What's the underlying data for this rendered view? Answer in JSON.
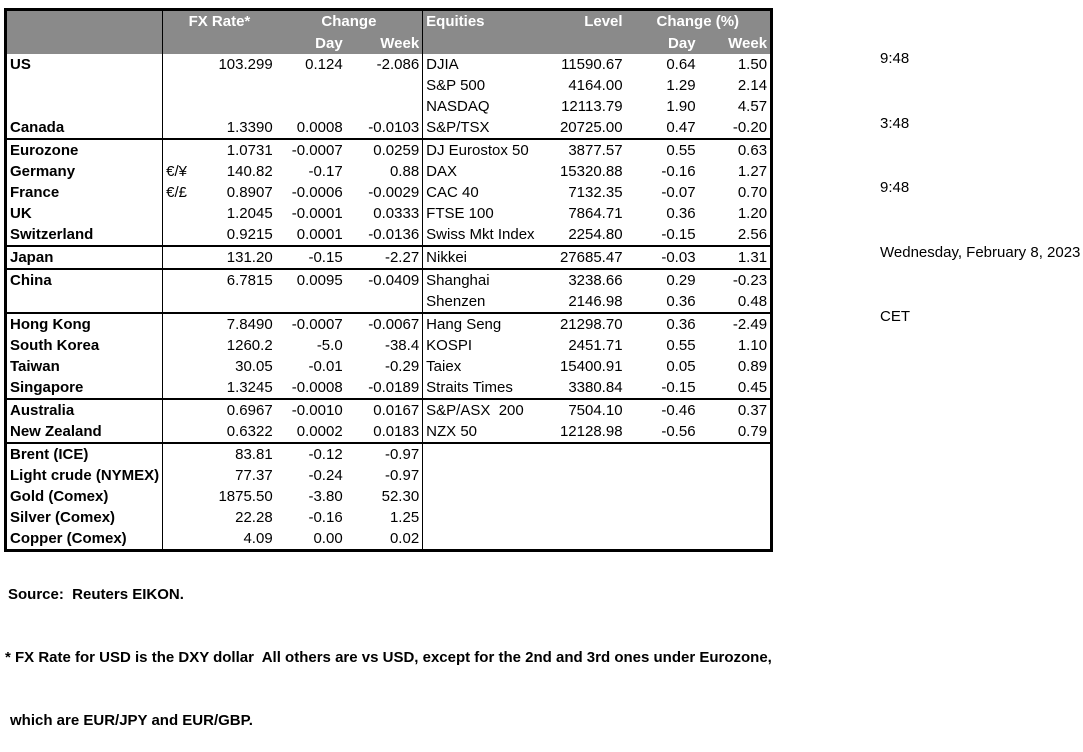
{
  "table": {
    "fx_header": {
      "rate": "FX Rate*",
      "change": "Change",
      "day": "Day",
      "week": "Week"
    },
    "eq_header": {
      "title": "Equities",
      "level": "Level",
      "change": "Change (%)",
      "day": "Day",
      "week": "Week"
    },
    "rows": [
      {
        "label": "US",
        "pair": "",
        "rate": "103.299",
        "day": "0.124",
        "week": "-2.086",
        "eq": "DJIA",
        "level": "11590.67",
        "eq_day": "0.64",
        "eq_week": "1.50",
        "sep": false,
        "indent": false
      },
      {
        "label": "",
        "pair": "",
        "rate": "",
        "day": "",
        "week": "",
        "eq": "S&P 500",
        "level": "4164.00",
        "eq_day": "1.29",
        "eq_week": "2.14",
        "sep": false,
        "indent": false
      },
      {
        "label": "",
        "pair": "",
        "rate": "",
        "day": "",
        "week": "",
        "eq": "NASDAQ",
        "level": "12113.79",
        "eq_day": "1.90",
        "eq_week": "4.57",
        "sep": false,
        "indent": false
      },
      {
        "label": "Canada",
        "pair": "",
        "rate": "1.3390",
        "day": "0.0008",
        "week": "-0.0103",
        "eq": "S&P/TSX",
        "level": "20725.00",
        "eq_day": "0.47",
        "eq_week": "-0.20",
        "sep": false,
        "indent": false
      },
      {
        "label": "Eurozone",
        "pair": "",
        "rate": "1.0731",
        "day": "-0.0007",
        "week": "0.0259",
        "eq": "DJ Eurostox 50",
        "level": "3877.57",
        "eq_day": "0.55",
        "eq_week": "0.63",
        "sep": true,
        "indent": false
      },
      {
        "label": "Germany",
        "pair": "€/¥",
        "rate": "140.82",
        "day": "-0.17",
        "week": "0.88",
        "eq": "DAX",
        "level": "15320.88",
        "eq_day": "-0.16",
        "eq_week": "1.27",
        "sep": false,
        "indent": true
      },
      {
        "label": "France",
        "pair": "€/£",
        "rate": "0.8907",
        "day": "-0.0006",
        "week": "-0.0029",
        "eq": "CAC 40",
        "level": "7132.35",
        "eq_day": "-0.07",
        "eq_week": "0.70",
        "sep": false,
        "indent": true
      },
      {
        "label": "UK",
        "pair": "",
        "rate": "1.2045",
        "day": "-0.0001",
        "week": "0.0333",
        "eq": "FTSE 100",
        "level": "7864.71",
        "eq_day": "0.36",
        "eq_week": "1.20",
        "sep": false,
        "indent": false
      },
      {
        "label": "Switzerland",
        "pair": "",
        "rate": "0.9215",
        "day": "0.0001",
        "week": "-0.0136",
        "eq": "Swiss Mkt Index",
        "level": "2254.80",
        "eq_day": "-0.15",
        "eq_week": "2.56",
        "sep": false,
        "indent": false
      },
      {
        "label": "Japan",
        "pair": "",
        "rate": "131.20",
        "day": "-0.15",
        "week": "-2.27",
        "eq": "Nikkei",
        "level": "27685.47",
        "eq_day": "-0.03",
        "eq_week": "1.31",
        "sep": true,
        "indent": false
      },
      {
        "label": "China",
        "pair": "",
        "rate": "6.7815",
        "day": "0.0095",
        "week": "-0.0409",
        "eq": "Shanghai",
        "level": "3238.66",
        "eq_day": "0.29",
        "eq_week": "-0.23",
        "sep": true,
        "indent": false
      },
      {
        "label": "",
        "pair": "",
        "rate": "",
        "day": "",
        "week": "",
        "eq": "Shenzen",
        "level": "2146.98",
        "eq_day": "0.36",
        "eq_week": "0.48",
        "sep": false,
        "indent": false
      },
      {
        "label": "Hong Kong",
        "pair": "",
        "rate": "7.8490",
        "day": "-0.0007",
        "week": "-0.0067",
        "eq": "Hang Seng",
        "level": "21298.70",
        "eq_day": "0.36",
        "eq_week": "-2.49",
        "sep": true,
        "indent": false
      },
      {
        "label": "South Korea",
        "pair": "",
        "rate": "1260.2",
        "day": "-5.0",
        "week": "-38.4",
        "eq": "KOSPI",
        "level": "2451.71",
        "eq_day": "0.55",
        "eq_week": "1.10",
        "sep": false,
        "indent": false
      },
      {
        "label": "Taiwan",
        "pair": "",
        "rate": "30.05",
        "day": "-0.01",
        "week": "-0.29",
        "eq": "Taiex",
        "level": "15400.91",
        "eq_day": "0.05",
        "eq_week": "0.89",
        "sep": false,
        "indent": false
      },
      {
        "label": "Singapore",
        "pair": "",
        "rate": "1.3245",
        "day": "-0.0008",
        "week": "-0.0189",
        "eq": "Straits Times",
        "level": "3380.84",
        "eq_day": "-0.15",
        "eq_week": "0.45",
        "sep": false,
        "indent": false
      },
      {
        "label": "Australia",
        "pair": "",
        "rate": "0.6967",
        "day": "-0.0010",
        "week": "0.0167",
        "eq": "S&P/ASX  200",
        "level": "7504.10",
        "eq_day": "-0.46",
        "eq_week": "0.37",
        "sep": true,
        "indent": false
      },
      {
        "label": "New Zealand",
        "pair": "",
        "rate": "0.6322",
        "day": "0.0002",
        "week": "0.0183",
        "eq": "NZX 50",
        "level": "12128.98",
        "eq_day": "-0.56",
        "eq_week": "0.79",
        "sep": false,
        "indent": false
      },
      {
        "label": "Brent (ICE)",
        "pair": "",
        "rate": "83.81",
        "day": "-0.12",
        "week": "-0.97",
        "eq": "",
        "level": "",
        "eq_day": "",
        "eq_week": "",
        "sep": true,
        "indent": false
      },
      {
        "label": "Light crude (NYMEX)",
        "pair": "",
        "rate": "77.37",
        "day": "-0.24",
        "week": "-0.97",
        "eq": "",
        "level": "",
        "eq_day": "",
        "eq_week": "",
        "sep": false,
        "indent": false
      },
      {
        "label": "Gold (Comex)",
        "pair": "",
        "rate": "1875.50",
        "day": "-3.80",
        "week": "52.30",
        "eq": "",
        "level": "",
        "eq_day": "",
        "eq_week": "",
        "sep": false,
        "indent": false
      },
      {
        "label": "Silver (Comex)",
        "pair": "",
        "rate": "22.28",
        "day": "-0.16",
        "week": "1.25",
        "eq": "",
        "level": "",
        "eq_day": "",
        "eq_week": "",
        "sep": false,
        "indent": false
      },
      {
        "label": "Copper (Comex)",
        "pair": "",
        "rate": "4.09",
        "day": "0.00",
        "week": "0.02",
        "eq": "",
        "level": "",
        "eq_day": "",
        "eq_week": "",
        "sep": false,
        "indent": false
      }
    ]
  },
  "timestamps": [
    "9:48",
    "3:48",
    "9:48",
    "Wednesday, February 8, 2023",
    "CET"
  ],
  "footer": {
    "source": "Source:  Reuters EIKON.",
    "note1": "* FX Rate for USD is the DXY dollar  All others are vs USD, except for the 2nd and 3rd ones under Eurozone,",
    "note2": "which are EUR/JPY and EUR/GBP."
  },
  "colors": {
    "header_bg": "#8a8a8a",
    "header_text": "#ffffff",
    "border": "#000000",
    "text": "#000000",
    "background": "#ffffff"
  }
}
